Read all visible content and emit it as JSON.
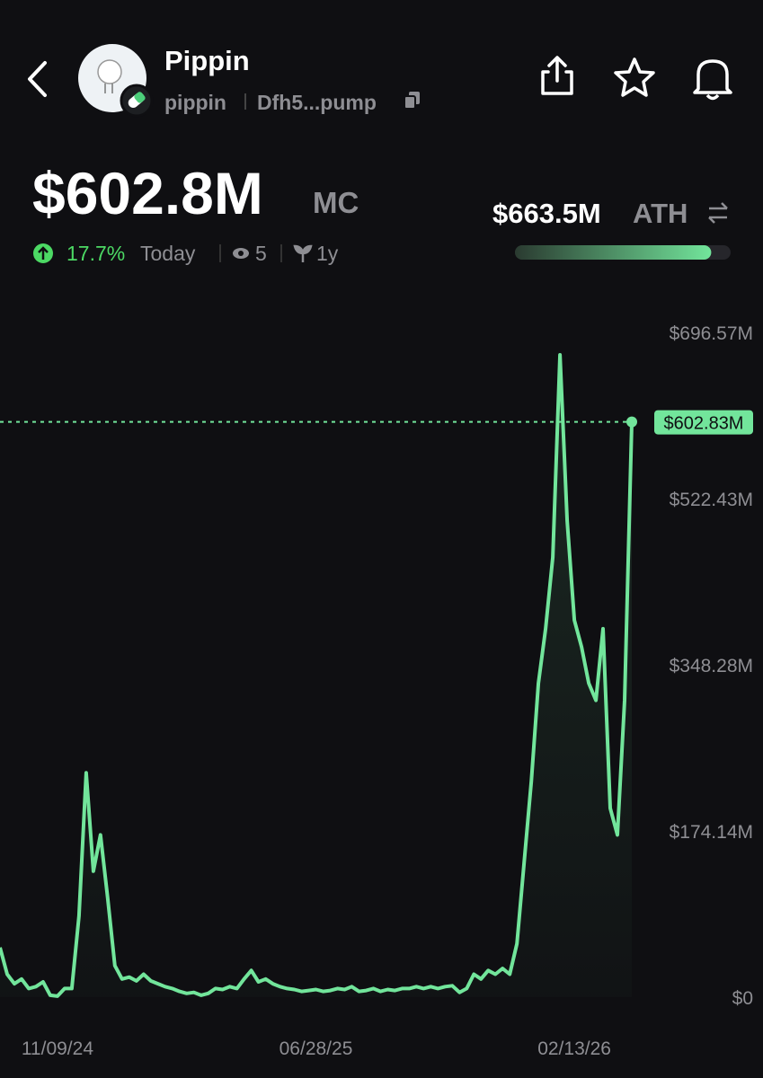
{
  "header": {
    "name": "Pippin",
    "ticker": "pippin",
    "address": "Dfh5...pump"
  },
  "market_cap": {
    "value": "$602.8M",
    "unit": "MC",
    "change": "17.7%",
    "period": "Today",
    "watchers": "5",
    "age": "1y"
  },
  "ath": {
    "value": "$663.5M",
    "label": "ATH",
    "progress": 91
  },
  "chart_data": {
    "type": "line",
    "categories": [
      null,
      null,
      null,
      null,
      null,
      null,
      null,
      null,
      "11/09/24",
      null,
      null,
      null,
      null,
      null,
      null,
      null,
      null,
      null,
      null,
      null,
      null,
      null,
      null,
      null,
      null,
      null,
      null,
      null,
      null,
      null,
      null,
      null,
      null,
      null,
      null,
      null,
      null,
      null,
      null,
      null,
      null,
      null,
      null,
      null,
      "06/28/25",
      null,
      null,
      null,
      null,
      null,
      null,
      null,
      null,
      null,
      null,
      null,
      null,
      null,
      null,
      null,
      null,
      null,
      null,
      null,
      null,
      null,
      null,
      null,
      null,
      null,
      null,
      null,
      null,
      null,
      null,
      null,
      null,
      null,
      null,
      null,
      "02/13/26",
      null,
      null,
      null,
      null,
      null,
      null,
      null,
      null
    ],
    "series": [
      {
        "name": "MC",
        "color": "#72e59b",
        "values": [
          52,
          24,
          14,
          19,
          9,
          11,
          16,
          2,
          1,
          9,
          9,
          85,
          235,
          132,
          170,
          104,
          33,
          19,
          21,
          17,
          24,
          17,
          14,
          11,
          9,
          6,
          4,
          5,
          2,
          4,
          9,
          8,
          11,
          9,
          19,
          28,
          16,
          19,
          14,
          11,
          9,
          8,
          6,
          7,
          8,
          6,
          7,
          9,
          8,
          11,
          6,
          7,
          9,
          6,
          8,
          7,
          9,
          9,
          11,
          9,
          11,
          9,
          11,
          12,
          5,
          9,
          24,
          19,
          28,
          24,
          30,
          24,
          56,
          141,
          226,
          329,
          386,
          461,
          673,
          499,
          395,
          367,
          329,
          311,
          386,
          198,
          170,
          311,
          602.83
        ]
      }
    ],
    "ylim": [
      0,
      696.57
    ],
    "yticks": [
      {
        "value": 0,
        "label": "$0"
      },
      {
        "value": 174.14,
        "label": "$174.14M"
      },
      {
        "value": 348.28,
        "label": "$348.28M"
      },
      {
        "value": 522.43,
        "label": "$522.43M"
      },
      {
        "value": 696.57,
        "label": "$696.57M"
      }
    ],
    "current": {
      "value": 602.83,
      "label": "$602.83M"
    }
  }
}
